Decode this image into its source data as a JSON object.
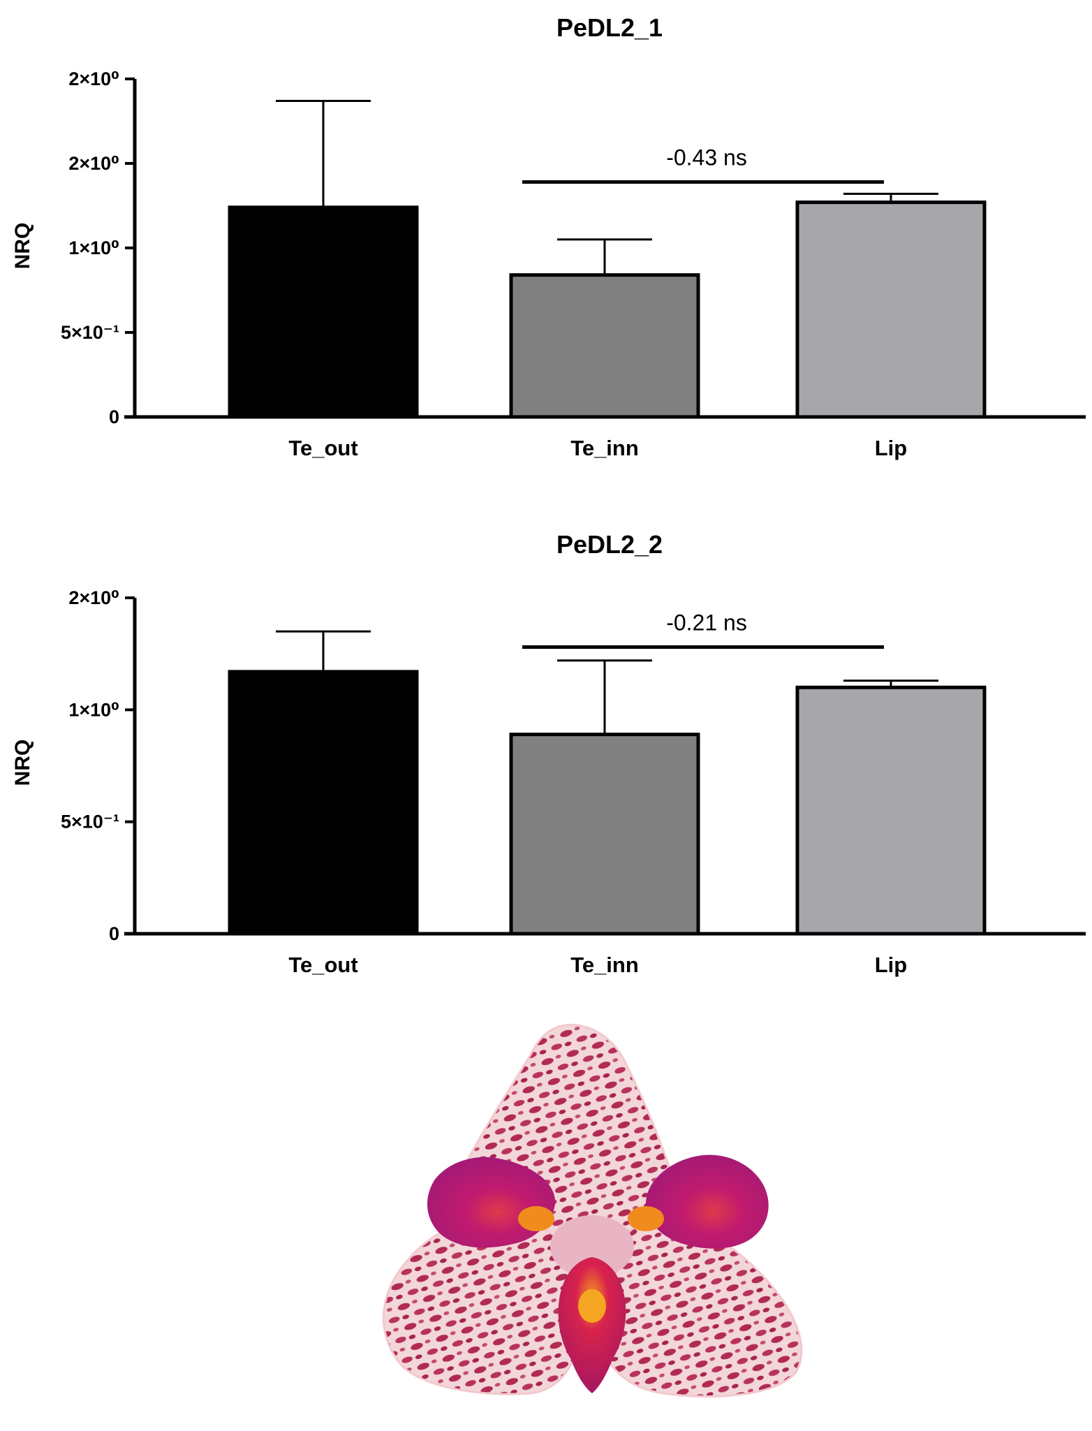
{
  "charts": [
    {
      "type": "bar",
      "title": "PeDL2_1",
      "ylabel": "NRQ",
      "y_tick_labels": [
        "0",
        "5×10⁻¹",
        "1×10⁰",
        "2×10⁰",
        "2×10⁰"
      ],
      "y_tick_values": [
        0,
        0.5,
        1.0,
        1.5,
        2.0
      ],
      "ylim": [
        0,
        2.0
      ],
      "categories": [
        "Te_out",
        "Te_inn",
        "Lip"
      ],
      "values": [
        1.24,
        0.84,
        1.27
      ],
      "errors": [
        0.63,
        0.21,
        0.05
      ],
      "colors": [
        "#000000",
        "#808080",
        "#a7a7ab"
      ],
      "annotation": {
        "text": "-0.43 ns",
        "from": "Te_inn",
        "to": "Lip",
        "y": 1.39
      }
    },
    {
      "type": "bar",
      "title": "PeDL2_2",
      "ylabel": "NRQ",
      "y_tick_labels": [
        "0",
        "5×10⁻¹",
        "1×10⁰",
        "2×10⁰"
      ],
      "y_tick_values": [
        0,
        0.5,
        1.0,
        1.5
      ],
      "ylim": [
        0,
        1.5
      ],
      "categories": [
        "Te_out",
        "Te_inn",
        "Lip"
      ],
      "values": [
        1.17,
        0.89,
        1.1
      ],
      "errors": [
        0.18,
        0.33,
        0.03
      ],
      "colors": [
        "#000000",
        "#808080",
        "#a7a7ab"
      ],
      "annotation": {
        "text": "-0.21 ns",
        "from": "Te_inn",
        "to": "Lip",
        "y": 1.28
      }
    }
  ],
  "photo": {
    "subject": "orchid flower",
    "colors": {
      "base": "#f3d6d8",
      "spots": "#b02a55",
      "petal": "#a4166e",
      "center": "#f08b1e"
    }
  }
}
